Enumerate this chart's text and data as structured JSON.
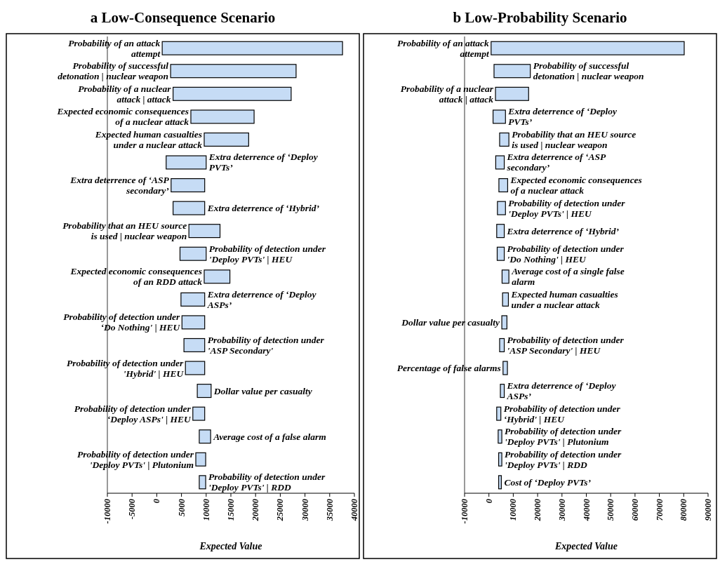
{
  "chart_data": [
    {
      "type": "bar",
      "orientation": "horizontal",
      "title": "a Low-Consequence Scenario",
      "xlabel": "Expected Value",
      "categories": [
        "Probability of an attack attempt",
        "Probability of successful detonation | nuclear weapon",
        "Probability of a nuclear attack | attack",
        "Expected economic consequences of a nuclear attack",
        "Expected human casualties under a nuclear attack",
        "Extra deterrence of ‘Deploy PVTs’",
        "Extra deterrence of ‘ASP secondary’",
        "Extra deterrence of ‘Hybrid’",
        "Probability that an HEU source is used | nuclear weapon",
        "Probability of detection under 'Deploy PVTs' | HEU",
        "Expected economic consequences of an RDD attack",
        "Extra deterrence of ‘Deploy ASPs’",
        "Probability of detection under ‘Do Nothing' | HEU",
        "Probability of detection under 'ASP Secondary'",
        "Probability of detection under 'Hybrid' | HEU",
        "Dollar value per casualty",
        "Probability of detection under ‘Deploy ASPs' | HEU",
        "Average cost of a false alarm",
        "Probability of detection under 'Deploy PVTs' | Plutonium",
        "Probability of detection under 'Deploy PVTs' | RDD"
      ],
      "base": [
        1100,
        2800,
        3300,
        6900,
        9600,
        1900,
        2900,
        3300,
        6500,
        4700,
        9600,
        4900,
        5100,
        5500,
        5800,
        8200,
        7300,
        8600,
        7900,
        8600
      ],
      "values": [
        36500,
        25400,
        23900,
        12800,
        9000,
        8100,
        6800,
        6400,
        6300,
        5300,
        5200,
        4800,
        4600,
        4200,
        3900,
        2800,
        2400,
        2300,
        2000,
        1300
      ],
      "color": "#c6dcf5",
      "xlim": [
        -10000,
        40000
      ],
      "xticks": [
        -10000,
        -5000,
        0,
        5000,
        10000,
        15000,
        20000,
        25000,
        30000,
        35000,
        40000
      ]
    },
    {
      "type": "bar",
      "orientation": "horizontal",
      "title": "b Low-Probability Scenario",
      "xlabel": "Expected Value",
      "categories": [
        "Probability of an attack attempt",
        "Probability of successful detonation | nuclear weapon",
        "Probability of a nuclear attack | attack",
        "Extra deterrence of ‘Deploy PVTs’",
        "Probability that an HEU source is used | nuclear weapon",
        "Extra deterrence of ‘ASP secondary’",
        "Expected economic consequences of a nuclear attack",
        "Probability of detection under 'Deploy PVTs' | HEU",
        "Extra deterrence of ‘Hybrid’",
        "Probability of detection under 'Do Nothing' | HEU",
        "Average cost of a single false alarm",
        "Expected human casualties under a nuclear attack",
        "Dollar value per casualty",
        "Probability of detection under 'ASP Secondary' | HEU",
        "Percentage of false alarms",
        "Extra deterrence of ‘Deploy ASPs’",
        "Probability of detection under ‘Hybrid' | HEU",
        "Probability of detection under 'Deploy PVTs' | Plutonium",
        "Probability of detection under 'Deploy PVTs' | RDD",
        "Cost of ‘Deploy PVTs’"
      ],
      "base": [
        900,
        2100,
        2700,
        1700,
        4400,
        2800,
        4100,
        3500,
        3200,
        3400,
        5400,
        5600,
        5300,
        4400,
        5800,
        4700,
        3200,
        3800,
        4000,
        4000
      ],
      "values": [
        79300,
        14900,
        13600,
        5100,
        3800,
        3500,
        3600,
        3300,
        3100,
        2900,
        2800,
        2400,
        2100,
        1900,
        1800,
        1600,
        1700,
        1500,
        1300,
        1100
      ],
      "color": "#c6dcf5",
      "xlim": [
        -10000,
        90000
      ],
      "xticks": [
        -10000,
        0,
        10000,
        20000,
        30000,
        40000,
        50000,
        60000,
        70000,
        80000,
        90000
      ]
    }
  ]
}
